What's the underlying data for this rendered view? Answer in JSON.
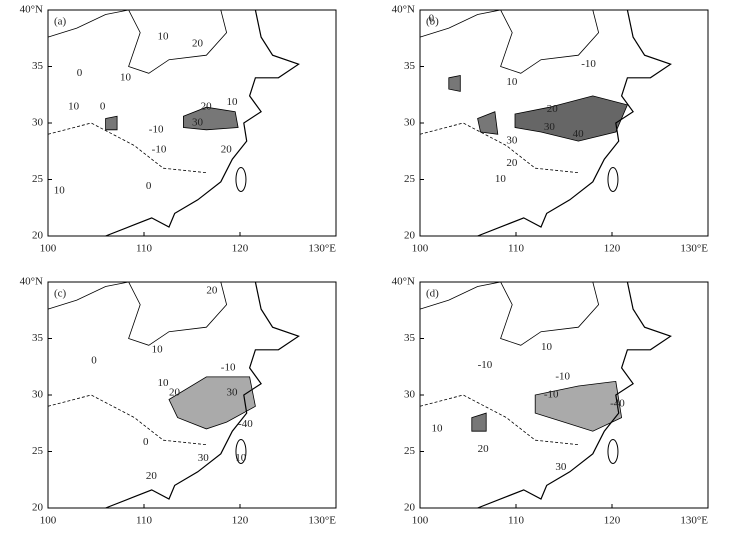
{
  "panels": [
    {
      "label": "(a)",
      "contour_labels": [
        "10",
        "20",
        "0",
        "10",
        "10",
        "0",
        "-10",
        "30",
        "20",
        "10",
        "-10",
        "20",
        "0",
        "10"
      ]
    },
    {
      "label": "(b)",
      "contour_labels": [
        "0",
        "-10",
        "10",
        "20",
        "30",
        "30",
        "40",
        "20",
        "10"
      ]
    },
    {
      "label": "(c)",
      "contour_labels": [
        "20",
        "10",
        "0",
        "10",
        "20",
        "-10",
        "30",
        "-40",
        "0",
        "30",
        "20",
        "10"
      ]
    },
    {
      "label": "(d)",
      "contour_labels": [
        "-10",
        "10",
        "-10",
        "-10",
        "10",
        "20",
        "-40",
        "30"
      ]
    }
  ],
  "lat_ticks": [
    "40°N",
    "35",
    "30",
    "25",
    "20"
  ],
  "lon_ticks": [
    "100",
    "110",
    "120",
    "130°E"
  ]
}
